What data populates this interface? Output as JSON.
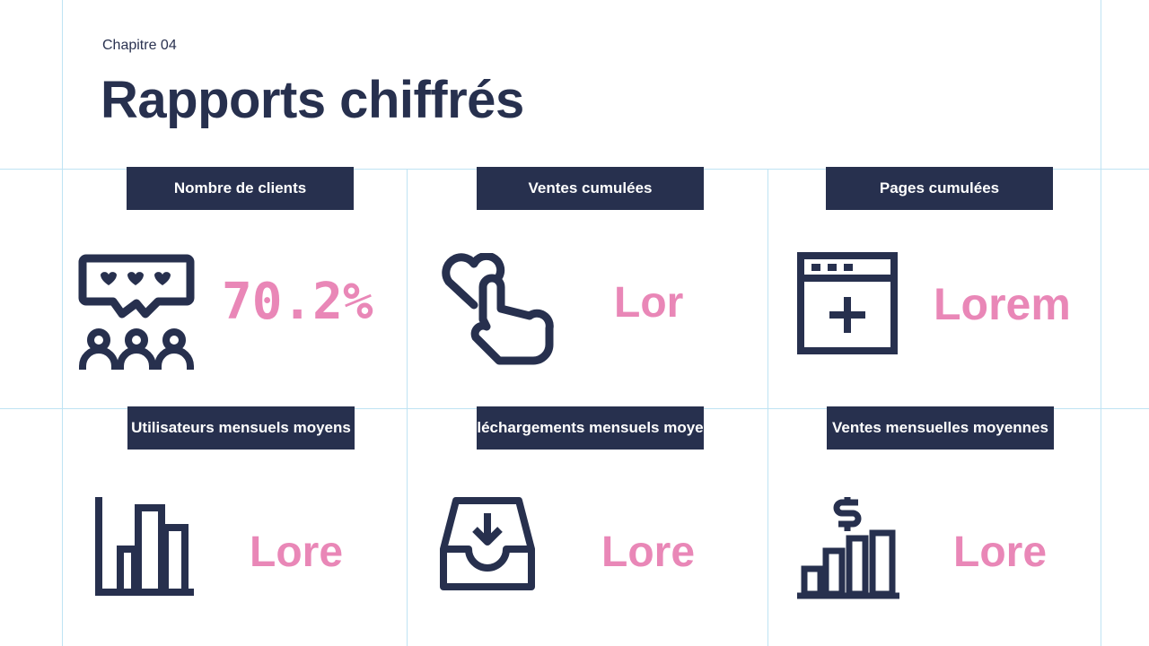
{
  "header": {
    "chapter": "Chapitre 04",
    "title": "Rapports chiffrés"
  },
  "cards": [
    {
      "label": "Nombre de clients",
      "value": "70.2%",
      "icon": "chat-users-icon"
    },
    {
      "label": "Ventes cumulées",
      "value": "Lor",
      "icon": "heart-hand-icon"
    },
    {
      "label": "Pages cumulées",
      "value": "Lorem",
      "icon": "browser-add-icon"
    },
    {
      "label": "Utilisateurs mensuels moyens",
      "value": "Lore",
      "icon": "bar-chart-icon"
    },
    {
      "label": "Téléchargements mensuels moyens",
      "value": "Lore",
      "icon": "inbox-download-icon"
    },
    {
      "label": "Ventes mensuelles moyennes",
      "value": "Lore",
      "icon": "dollar-bars-icon"
    }
  ],
  "colors": {
    "navy": "#27304e",
    "pink": "#e987b7",
    "guide": "#bfe3f3"
  }
}
